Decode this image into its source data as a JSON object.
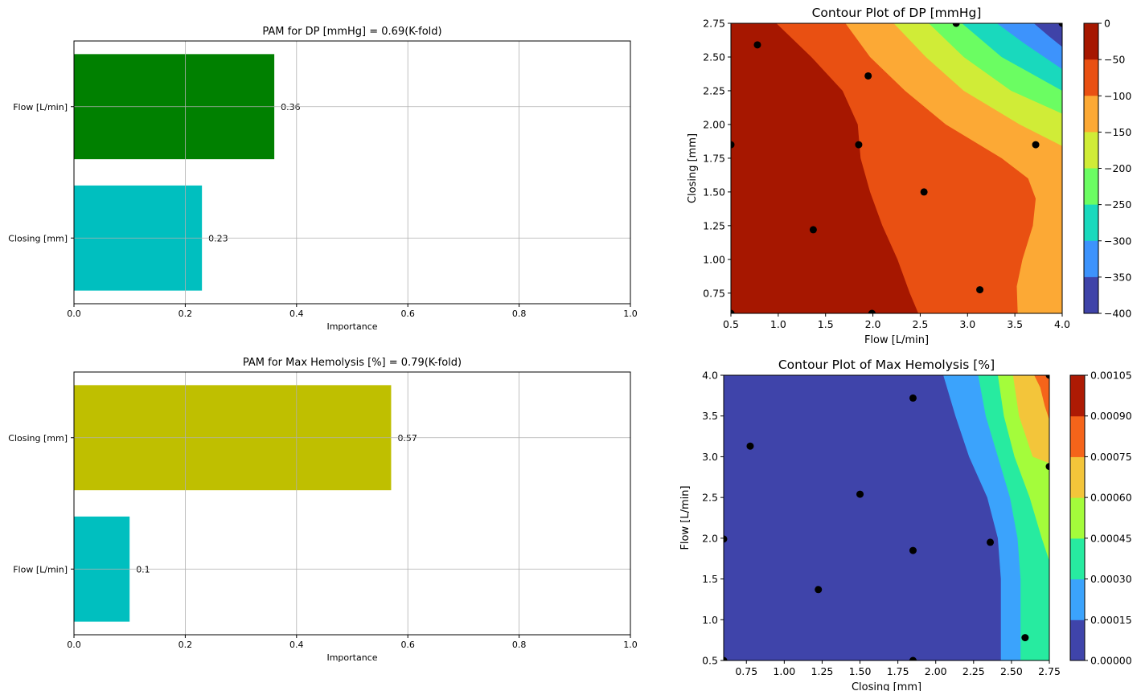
{
  "chart_data": [
    {
      "type": "bar",
      "orientation": "horizontal",
      "title": "PAM for DP [mmHg] = 0.69(K-fold)",
      "xlabel": "Importance",
      "xlim": [
        0,
        1
      ],
      "xticks": [
        "0.0",
        "0.2",
        "0.4",
        "0.6",
        "0.8",
        "1.0"
      ],
      "grid": true,
      "categories": [
        "Flow [L/min]",
        "Closing [mm]"
      ],
      "values": [
        0.36,
        0.23
      ],
      "value_labels": [
        "0.36",
        "0.23"
      ],
      "colors": [
        "#008000",
        "#00bfbf"
      ]
    },
    {
      "type": "bar",
      "orientation": "horizontal",
      "title": "PAM for Max Hemolysis [%] = 0.79(K-fold)",
      "xlabel": "Importance",
      "xlim": [
        0,
        1
      ],
      "xticks": [
        "0.0",
        "0.2",
        "0.4",
        "0.6",
        "0.8",
        "1.0"
      ],
      "grid": true,
      "categories": [
        "Closing [mm]",
        "Flow [L/min]"
      ],
      "values": [
        0.57,
        0.1
      ],
      "value_labels": [
        "0.57",
        "0.1"
      ],
      "colors": [
        "#bfbf00",
        "#00bfbf"
      ]
    },
    {
      "type": "contour",
      "title": "Contour Plot of DP [mmHg]",
      "xlabel": "Flow [L/min]",
      "ylabel": "Closing [mm]",
      "xlim": [
        0.5,
        4.0
      ],
      "ylim": [
        0.6,
        2.75
      ],
      "xticks": [
        "0.5",
        "1.0",
        "1.5",
        "2.0",
        "2.5",
        "3.0",
        "3.5",
        "4.0"
      ],
      "yticks": [
        "0.75",
        "1.00",
        "1.25",
        "1.50",
        "1.75",
        "2.00",
        "2.25",
        "2.50",
        "2.75"
      ],
      "levels": [
        0,
        -50,
        -100,
        -150,
        -200,
        -250,
        -300,
        -350,
        -400
      ],
      "colorbar_ticks": [
        "0",
        "−50",
        "−100",
        "−150",
        "−200",
        "−250",
        "−300",
        "−350",
        "−400"
      ],
      "level_colors": [
        "#a61700",
        "#e95012",
        "#fca935",
        "#d0ec37",
        "#6bfd62",
        "#19d9bd",
        "#3d93fc",
        "#3f43a8"
      ],
      "boundaries": [
        {
          "level": -50,
          "end": "bottom",
          "points": [
            [
              0.98,
              2.75
            ],
            [
              1.35,
              2.5
            ],
            [
              1.68,
              2.25
            ],
            [
              1.84,
              2.0
            ],
            [
              1.87,
              1.75
            ],
            [
              1.97,
              1.5
            ],
            [
              2.1,
              1.25
            ],
            [
              2.26,
              1.0
            ],
            [
              2.39,
              0.75
            ],
            [
              2.48,
              0.6
            ]
          ]
        },
        {
          "level": -100,
          "end": "bottom",
          "points": [
            [
              1.71,
              2.75
            ],
            [
              1.97,
              2.5
            ],
            [
              2.34,
              2.25
            ],
            [
              2.77,
              2.0
            ],
            [
              3.36,
              1.75
            ],
            [
              3.64,
              1.6
            ],
            [
              3.72,
              1.45
            ],
            [
              3.69,
              1.25
            ],
            [
              3.58,
              1.0
            ],
            [
              3.52,
              0.8
            ],
            [
              3.53,
              0.6
            ]
          ]
        },
        {
          "level": -150,
          "end": "right",
          "points": [
            [
              2.22,
              2.75
            ],
            [
              2.56,
              2.5
            ],
            [
              2.96,
              2.25
            ],
            [
              3.55,
              2.0
            ],
            [
              4.0,
              1.84
            ]
          ]
        },
        {
          "level": -200,
          "end": "right",
          "points": [
            [
              2.59,
              2.75
            ],
            [
              2.96,
              2.5
            ],
            [
              3.46,
              2.25
            ],
            [
              4.0,
              2.08
            ]
          ]
        },
        {
          "level": -250,
          "end": "right",
          "points": [
            [
              2.94,
              2.75
            ],
            [
              3.36,
              2.5
            ],
            [
              4.0,
              2.25
            ]
          ]
        },
        {
          "level": -300,
          "end": "right",
          "points": [
            [
              3.31,
              2.75
            ],
            [
              3.6,
              2.6
            ],
            [
              4.0,
              2.41
            ]
          ]
        },
        {
          "level": -350,
          "end": "right",
          "points": [
            [
              3.7,
              2.75
            ],
            [
              3.85,
              2.66
            ],
            [
              4.0,
              2.575
            ]
          ]
        }
      ],
      "points": [
        [
          0.5,
          0.6
        ],
        [
          0.78,
          2.59
        ],
        [
          1.37,
          1.22
        ],
        [
          0.5,
          1.85
        ],
        [
          1.85,
          1.85
        ],
        [
          1.95,
          2.36
        ],
        [
          1.99,
          0.6
        ],
        [
          2.54,
          1.5
        ],
        [
          2.88,
          2.75
        ],
        [
          3.13,
          0.775
        ],
        [
          3.72,
          1.85
        ],
        [
          4.0,
          2.75
        ]
      ]
    },
    {
      "type": "contour",
      "title": "Contour Plot of Max Hemolysis [%]",
      "xlabel": "Closing [mm]",
      "ylabel": "Flow [L/min]",
      "xlim": [
        0.6,
        2.75
      ],
      "ylim": [
        0.5,
        4.0
      ],
      "xticks": [
        "0.75",
        "1.00",
        "1.25",
        "1.50",
        "1.75",
        "2.00",
        "2.25",
        "2.50",
        "2.75"
      ],
      "yticks": [
        "0.5",
        "1.0",
        "1.5",
        "2.0",
        "2.5",
        "3.0",
        "3.5",
        "4.0"
      ],
      "levels": [
        0.0,
        0.00015,
        0.0003,
        0.00045,
        0.0006,
        0.00075,
        0.0009,
        0.00105
      ],
      "colorbar_ticks": [
        "0.00000",
        "0.00015",
        "0.00030",
        "0.00045",
        "0.00060",
        "0.00075",
        "0.00090",
        "0.00105"
      ],
      "level_colors": [
        "#3f44aa",
        "#3ba3fc",
        "#27eba0",
        "#a4fc3b",
        "#f3c53a",
        "#f5641a",
        "#ad1a04"
      ],
      "boundaries": [
        {
          "level": 0.00015,
          "end": "bottom",
          "points": [
            [
              2.05,
              4.0
            ],
            [
              2.13,
              3.5
            ],
            [
              2.22,
              3.0
            ],
            [
              2.34,
              2.5
            ],
            [
              2.41,
              2.0
            ],
            [
              2.43,
              1.5
            ],
            [
              2.43,
              1.0
            ],
            [
              2.43,
              0.5
            ]
          ]
        },
        {
          "level": 0.0003,
          "end": "bottom",
          "points": [
            [
              2.28,
              4.0
            ],
            [
              2.33,
              3.5
            ],
            [
              2.41,
              3.0
            ],
            [
              2.49,
              2.5
            ],
            [
              2.54,
              2.0
            ],
            [
              2.56,
              1.5
            ],
            [
              2.56,
              1.0
            ],
            [
              2.56,
              0.5
            ]
          ]
        },
        {
          "level": 0.00045,
          "end": "right",
          "points": [
            [
              2.41,
              4.0
            ],
            [
              2.45,
              3.5
            ],
            [
              2.52,
              3.0
            ],
            [
              2.62,
              2.5
            ],
            [
              2.7,
              2.0
            ],
            [
              2.75,
              1.72
            ]
          ]
        },
        {
          "level": 0.0006,
          "end": "right",
          "points": [
            [
              2.51,
              4.0
            ],
            [
              2.55,
              3.5
            ],
            [
              2.64,
              3.0
            ],
            [
              2.75,
              2.92
            ]
          ]
        },
        {
          "level": 0.00075,
          "end": "right",
          "points": [
            [
              2.65,
              4.0
            ],
            [
              2.69,
              3.85
            ],
            [
              2.72,
              3.62
            ],
            [
              2.75,
              3.45
            ]
          ]
        }
      ],
      "points": [
        [
          0.6,
          0.5
        ],
        [
          0.6,
          1.99
        ],
        [
          0.775,
          3.13
        ],
        [
          1.225,
          1.37
        ],
        [
          1.5,
          2.54
        ],
        [
          1.85,
          3.72
        ],
        [
          1.85,
          1.85
        ],
        [
          1.85,
          0.5
        ],
        [
          2.36,
          1.95
        ],
        [
          2.59,
          0.78
        ],
        [
          2.75,
          2.88
        ],
        [
          2.75,
          4.0
        ]
      ]
    }
  ]
}
